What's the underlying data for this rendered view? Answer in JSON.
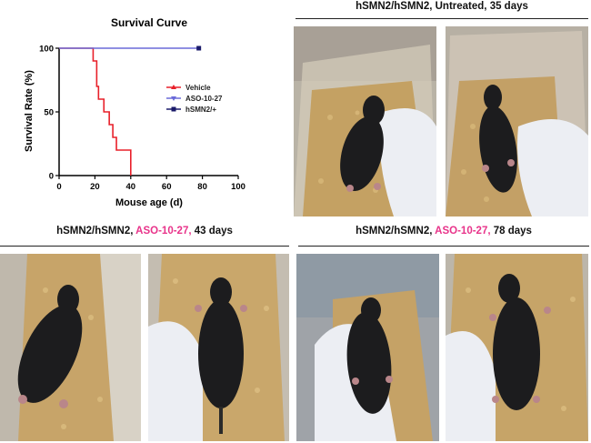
{
  "chart_data": {
    "type": "line",
    "title": "Survival Curve",
    "xlabel": "Mouse age (d)",
    "ylabel": "Survival Rate (%)",
    "xlim": [
      0,
      100
    ],
    "ylim": [
      0,
      100
    ],
    "xticks": [
      0,
      20,
      40,
      60,
      80,
      100
    ],
    "yticks": [
      0,
      50,
      100
    ],
    "legend_position": "right",
    "series": [
      {
        "name": "Vehicle",
        "color": "#e8202a",
        "marker": "triangle-up",
        "step_points": [
          [
            0,
            100
          ],
          [
            19,
            100
          ],
          [
            19,
            90
          ],
          [
            21,
            90
          ],
          [
            21,
            70
          ],
          [
            22,
            70
          ],
          [
            22,
            60
          ],
          [
            25,
            60
          ],
          [
            25,
            50
          ],
          [
            28,
            50
          ],
          [
            28,
            40
          ],
          [
            30,
            40
          ],
          [
            30,
            30
          ],
          [
            32,
            30
          ],
          [
            32,
            20
          ],
          [
            40,
            20
          ],
          [
            40,
            0
          ]
        ]
      },
      {
        "name": "ASO-10-27",
        "color": "#6a6ad8",
        "marker": "triangle-down",
        "step_points": [
          [
            0,
            100
          ],
          [
            78,
            100
          ]
        ]
      },
      {
        "name": "hSMN2/+",
        "color": "#1a1a6a",
        "marker": "square",
        "step_points": [
          [
            78,
            100
          ]
        ]
      }
    ]
  },
  "headers": {
    "top_right": "hSMN2/hSMN2, Untreated, 35 days",
    "bottom_left": {
      "prefix": "hSMN2/hSMN2, ",
      "highlight": "ASO-10-27,",
      "suffix": " 43 days"
    },
    "bottom_right": {
      "prefix": "hSMN2/hSMN2, ",
      "highlight": "ASO-10-27,",
      "suffix": " 78 days"
    }
  },
  "colors": {
    "highlight": "#e8338a",
    "mouse": "#1c1c1e",
    "glove": "#eef0f4",
    "bedding": "#c9a66a"
  }
}
